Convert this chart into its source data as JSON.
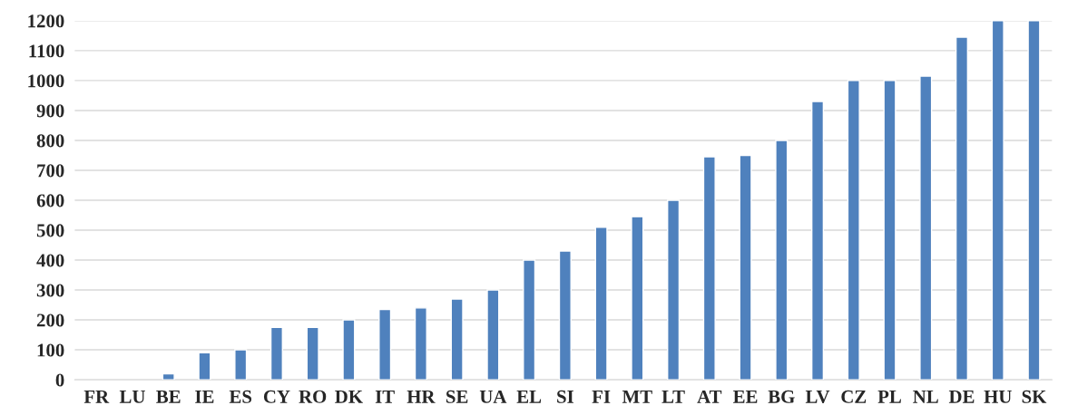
{
  "chart_data": {
    "type": "bar",
    "categories": [
      "FR",
      "LU",
      "BE",
      "IE",
      "ES",
      "CY",
      "RO",
      "DK",
      "IT",
      "HR",
      "SE",
      "UA",
      "EL",
      "SI",
      "FI",
      "MT",
      "LT",
      "AT",
      "EE",
      "BG",
      "LV",
      "CZ",
      "PL",
      "NL",
      "DE",
      "HU",
      "SK"
    ],
    "values": [
      null,
      null,
      20,
      90,
      100,
      175,
      175,
      200,
      235,
      240,
      270,
      300,
      400,
      430,
      510,
      545,
      600,
      745,
      750,
      800,
      930,
      1000,
      1000,
      1015,
      1145,
      1200,
      1200
    ],
    "color": "#4f81bd",
    "ylim": [
      0,
      1200
    ],
    "yticks": [
      0,
      100,
      200,
      300,
      400,
      500,
      600,
      700,
      800,
      900,
      1000,
      1100,
      1200
    ],
    "grid": "y"
  }
}
